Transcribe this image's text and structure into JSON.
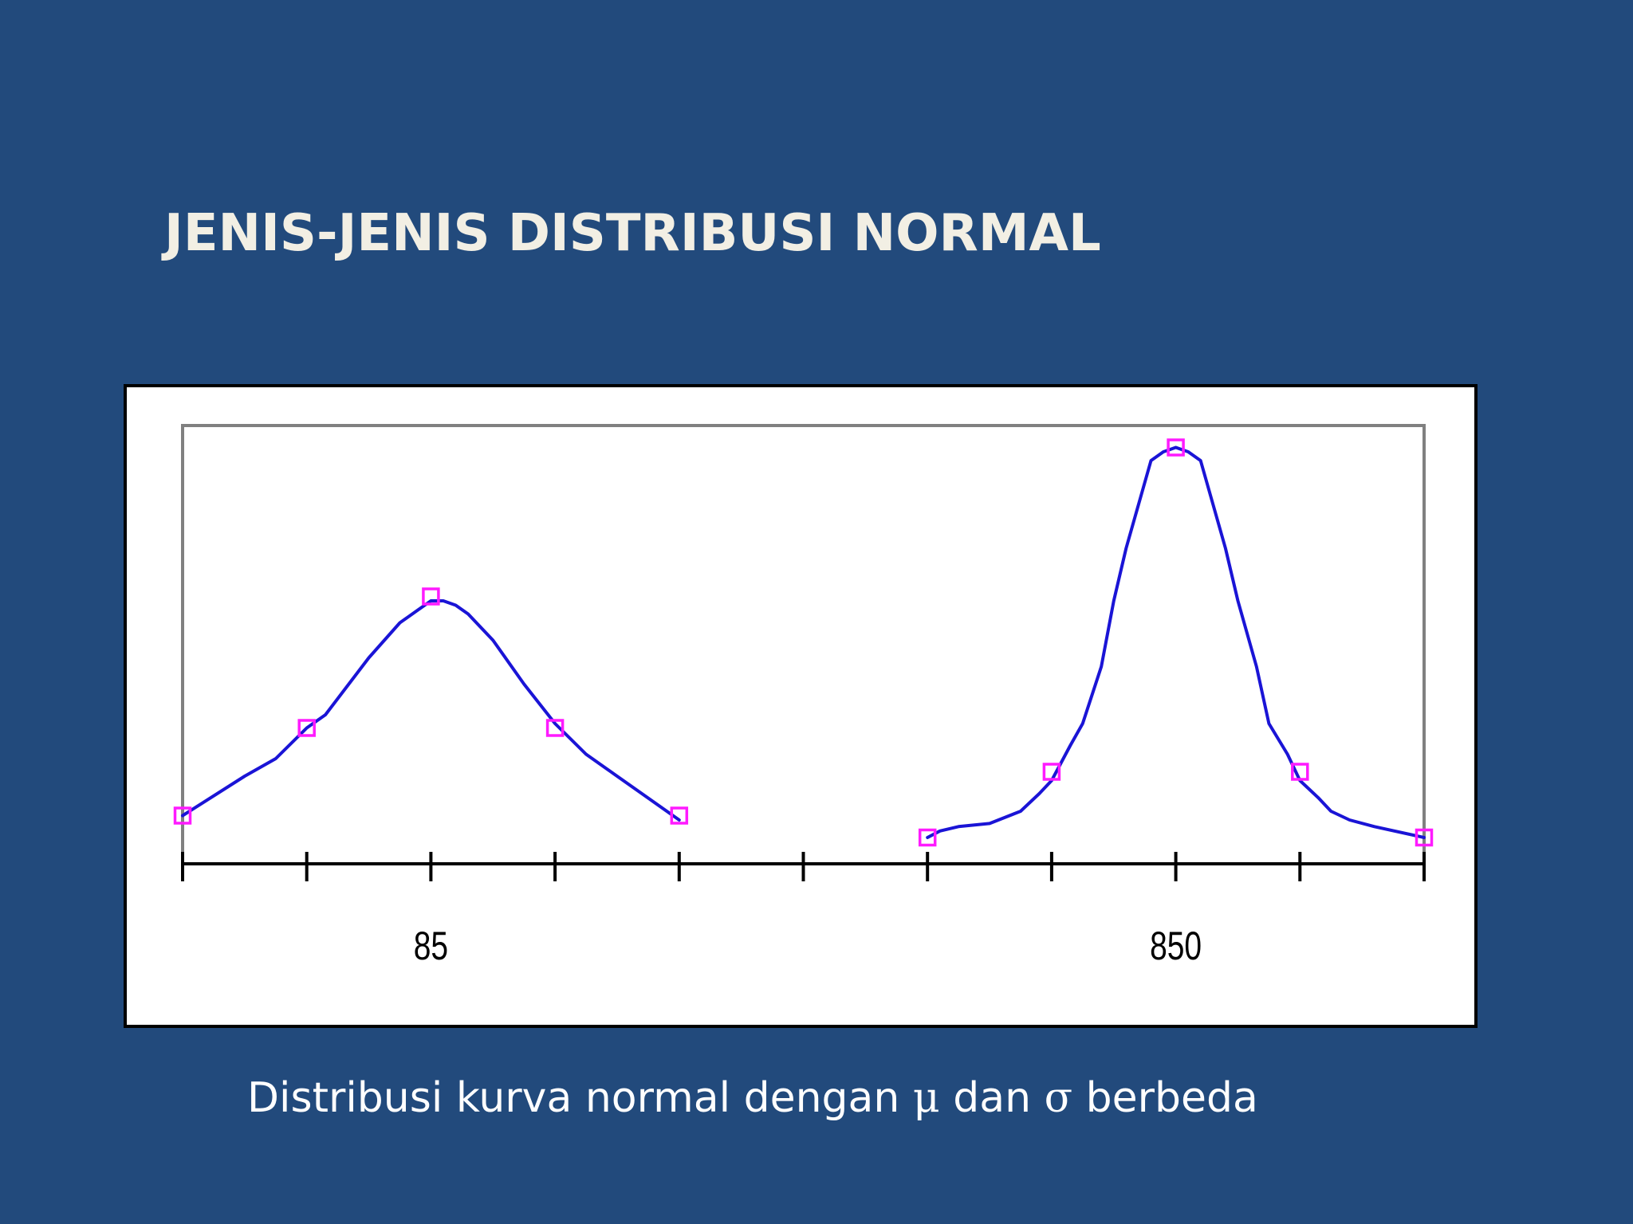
{
  "slide": {
    "title": "JENIS-JENIS DISTRIBUSI NORMAL",
    "caption": {
      "before_mu": "Distribusi kurva normal dengan ",
      "mu": "μ",
      "middle": " dan ",
      "sigma": "σ",
      "after_sigma": " berbeda"
    }
  },
  "colors": {
    "background": "#224a7c",
    "title": "#f2efe4",
    "curve": "#1a14d6",
    "marker": "#ff1aff",
    "plot_border": "#808080",
    "axis": "#000000"
  },
  "chart_data": {
    "type": "line",
    "title": "",
    "xlabel": "",
    "ylabel": "",
    "xlim": [
      0,
      10
    ],
    "ylim": [
      0,
      1
    ],
    "grid": false,
    "legend": "none",
    "x_ticks": [
      0,
      1,
      2,
      3,
      4,
      5,
      6,
      7,
      8,
      9,
      10
    ],
    "tick_labels": [
      {
        "x": 2,
        "text": "85"
      },
      {
        "x": 8,
        "text": "850"
      }
    ],
    "series": [
      {
        "curve": [
          [
            0,
            0.11
          ],
          [
            0.5,
            0.2
          ],
          [
            0.75,
            0.24
          ],
          [
            1,
            0.31
          ],
          [
            1.15,
            0.34
          ],
          [
            1.5,
            0.47
          ],
          [
            1.75,
            0.55
          ],
          [
            1.9,
            0.58
          ],
          [
            2,
            0.6
          ],
          [
            2.1,
            0.6
          ],
          [
            2.2,
            0.59
          ],
          [
            2.3,
            0.57
          ],
          [
            2.5,
            0.51
          ],
          [
            2.75,
            0.41
          ],
          [
            3,
            0.32
          ],
          [
            3.25,
            0.25
          ],
          [
            3.5,
            0.2
          ],
          [
            3.75,
            0.15
          ],
          [
            4,
            0.1
          ]
        ],
        "markers": [
          [
            0,
            0.11
          ],
          [
            1,
            0.31
          ],
          [
            2,
            0.61
          ],
          [
            3,
            0.31
          ],
          [
            4,
            0.11
          ]
        ]
      },
      {
        "curve": [
          [
            6,
            0.06
          ],
          [
            6.1,
            0.075
          ],
          [
            6.25,
            0.085
          ],
          [
            6.5,
            0.092
          ],
          [
            6.75,
            0.12
          ],
          [
            6.9,
            0.16
          ],
          [
            7,
            0.19
          ],
          [
            7.15,
            0.27
          ],
          [
            7.25,
            0.32
          ],
          [
            7.4,
            0.45
          ],
          [
            7.5,
            0.6
          ],
          [
            7.6,
            0.72
          ],
          [
            7.7,
            0.82
          ],
          [
            7.8,
            0.92
          ],
          [
            7.9,
            0.94
          ],
          [
            8,
            0.95
          ],
          [
            8.1,
            0.94
          ],
          [
            8.2,
            0.92
          ],
          [
            8.3,
            0.82
          ],
          [
            8.4,
            0.72
          ],
          [
            8.5,
            0.6
          ],
          [
            8.65,
            0.45
          ],
          [
            8.75,
            0.32
          ],
          [
            8.9,
            0.25
          ],
          [
            9,
            0.19
          ],
          [
            9.15,
            0.15
          ],
          [
            9.25,
            0.12
          ],
          [
            9.4,
            0.1
          ],
          [
            9.6,
            0.085
          ],
          [
            10,
            0.06
          ]
        ],
        "markers": [
          [
            6,
            0.06
          ],
          [
            7,
            0.21
          ],
          [
            8,
            0.95
          ],
          [
            9,
            0.21
          ],
          [
            10,
            0.06
          ]
        ]
      }
    ]
  }
}
